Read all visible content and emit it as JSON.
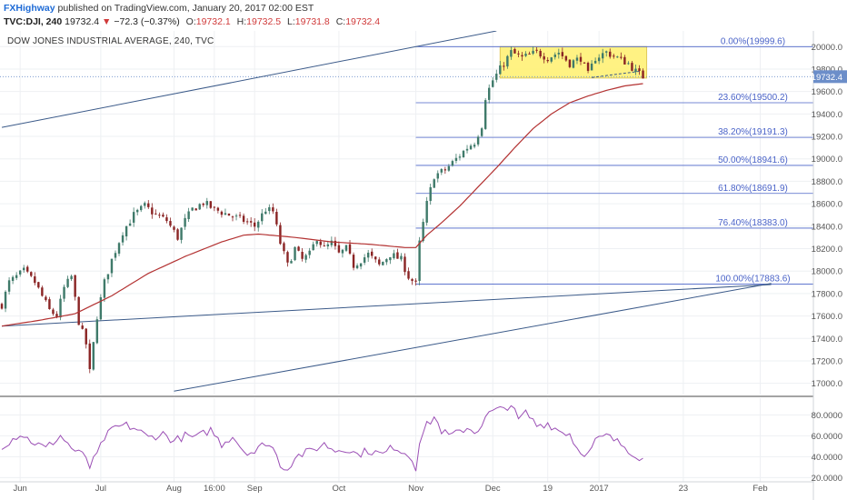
{
  "header": {
    "author": "FXHighway",
    "published_text": "published on TradingView.com, January 20, 2017 02:00 EST",
    "symbol": "TVC:DJI, 240",
    "last": "19732.4",
    "change": "−72.3 (−0.37%)",
    "o_label": "O:",
    "o": "19732.1",
    "h_label": "H:",
    "h": "19732.5",
    "l_label": "L:",
    "l": "19731.8",
    "c_label": "C:",
    "c": "19732.4",
    "colors": {
      "author": "#1e6bd6",
      "down": "#d03a3a"
    }
  },
  "chart_data": [
    {
      "type": "candlestick",
      "title": "DOW JONES INDUSTRIAL AVERAGE, 240, TVC",
      "ylim": [
        16900,
        20140
      ],
      "y_ticks": [
        "20000.0",
        "19800.0",
        "19600.0",
        "19400.0",
        "19200.0",
        "19000.0",
        "18800.0",
        "18600.0",
        "18400.0",
        "18200.0",
        "18000.0",
        "17800.0",
        "17600.0",
        "17400.0",
        "17200.0",
        "17000.0"
      ],
      "y_tick_values": [
        20000,
        19800,
        19600,
        19400,
        19200,
        19000,
        18800,
        18600,
        18400,
        18200,
        18000,
        17800,
        17600,
        17400,
        17200,
        17000
      ],
      "x_labels": [
        "Jun",
        "Jul",
        "Aug",
        "16:00",
        "Sep",
        "Oct",
        "Nov",
        "Dec",
        "19",
        "2017",
        "Feb",
        "23"
      ],
      "x_label_index": [
        5,
        27,
        47,
        58,
        69,
        92,
        113,
        134,
        149,
        163,
        207,
        186
      ],
      "bars_total": 222,
      "last_price_label": "19732.4",
      "last_price": 19732.4,
      "series": [
        {
          "name": "price",
          "anchors": [
            [
              0,
              17700
            ],
            [
              2,
              17900
            ],
            [
              6,
              18000
            ],
            [
              9,
              17900
            ],
            [
              13,
              17650
            ],
            [
              15,
              17600
            ],
            [
              17,
              17850
            ],
            [
              19,
              17950
            ],
            [
              21,
              17550
            ],
            [
              23,
              17350
            ],
            [
              24,
              17100
            ],
            [
              25,
              17350
            ],
            [
              26,
              17600
            ],
            [
              28,
              17900
            ],
            [
              30,
              18100
            ],
            [
              33,
              18350
            ],
            [
              36,
              18500
            ],
            [
              39,
              18580
            ],
            [
              42,
              18500
            ],
            [
              45,
              18450
            ],
            [
              48,
              18300
            ],
            [
              50,
              18450
            ],
            [
              52,
              18550
            ],
            [
              55,
              18610
            ],
            [
              58,
              18550
            ],
            [
              62,
              18500
            ],
            [
              66,
              18450
            ],
            [
              69,
              18400
            ],
            [
              72,
              18550
            ],
            [
              74,
              18530
            ],
            [
              76,
              18250
            ],
            [
              78,
              18050
            ],
            [
              80,
              18200
            ],
            [
              82,
              18100
            ],
            [
              84,
              18150
            ],
            [
              86,
              18300
            ],
            [
              88,
              18200
            ],
            [
              90,
              18250
            ],
            [
              92,
              18150
            ],
            [
              94,
              18200
            ],
            [
              96,
              18050
            ],
            [
              98,
              18100
            ],
            [
              100,
              18150
            ],
            [
              103,
              18050
            ],
            [
              106,
              18150
            ],
            [
              109,
              18100
            ],
            [
              111,
              17950
            ],
            [
              113,
              17880
            ],
            [
              114,
              18250
            ],
            [
              116,
              18600
            ],
            [
              118,
              18850
            ],
            [
              121,
              18900
            ],
            [
              124,
              19000
            ],
            [
              127,
              19100
            ],
            [
              129,
              19150
            ],
            [
              131,
              19300
            ],
            [
              132,
              19550
            ],
            [
              134,
              19700
            ],
            [
              136,
              19800
            ],
            [
              139,
              19950
            ],
            [
              142,
              19900
            ],
            [
              146,
              19950
            ],
            [
              149,
              19900
            ],
            [
              152,
              19950
            ],
            [
              155,
              19850
            ],
            [
              158,
              19900
            ],
            [
              160,
              19750
            ],
            [
              162,
              19900
            ],
            [
              165,
              19950
            ],
            [
              168,
              19900
            ],
            [
              171,
              19850
            ],
            [
              173,
              19780
            ],
            [
              175,
              19732
            ]
          ],
          "colors": {
            "up": "#3f7a6a",
            "down": "#8a2424"
          }
        },
        {
          "name": "moving-average",
          "anchors": [
            [
              0,
              17510
            ],
            [
              10,
              17560
            ],
            [
              20,
              17620
            ],
            [
              30,
              17780
            ],
            [
              40,
              17980
            ],
            [
              50,
              18130
            ],
            [
              60,
              18260
            ],
            [
              66,
              18320
            ],
            [
              70,
              18330
            ],
            [
              80,
              18300
            ],
            [
              90,
              18260
            ],
            [
              100,
              18240
            ],
            [
              110,
              18210
            ],
            [
              113,
              18210
            ],
            [
              116,
              18320
            ],
            [
              120,
              18430
            ],
            [
              125,
              18580
            ],
            [
              130,
              18750
            ],
            [
              135,
              18920
            ],
            [
              140,
              19100
            ],
            [
              145,
              19270
            ],
            [
              150,
              19400
            ],
            [
              155,
              19500
            ],
            [
              160,
              19560
            ],
            [
              165,
              19610
            ],
            [
              170,
              19650
            ],
            [
              175,
              19670
            ]
          ],
          "color": "#b33232"
        }
      ],
      "fib_levels": [
        {
          "label": "0.00%(19999.6)",
          "value": 19999.6
        },
        {
          "label": "23.60%(19500.2)",
          "value": 19500.2
        },
        {
          "label": "38.20%(19191.3)",
          "value": 19191.3
        },
        {
          "label": "50.00%(18941.6)",
          "value": 18941.6
        },
        {
          "label": "61.80%(18691.9)",
          "value": 18691.9
        },
        {
          "label": "76.40%(18383.0)",
          "value": 18383.0
        },
        {
          "label": "100.00%(17883.6)",
          "value": 17883.6
        }
      ],
      "fib_start_index": 113,
      "fib_label_index": 205,
      "trendlines": [
        {
          "from": [
            0,
            19280
          ],
          "to": [
            135,
            20140
          ]
        },
        {
          "from": [
            0,
            17510
          ],
          "to": [
            210,
            17880
          ]
        },
        {
          "from": [
            47,
            16930
          ],
          "to": [
            210,
            17890
          ]
        }
      ],
      "range_box": {
        "from_index": 136,
        "to_index": 176,
        "top": 20000,
        "bottom": 19720
      },
      "range_support": {
        "from": [
          161,
          19725
        ],
        "to": [
          174,
          19780
        ]
      },
      "dotted_price_line": 19732.4,
      "colors": {
        "box": "#fff176",
        "fib": "#4a63c8",
        "trend": "#3b5a89",
        "ma": "#b33232"
      }
    },
    {
      "type": "line",
      "name": "oscillator",
      "ylim": [
        16,
        96
      ],
      "y_ticks": [
        "80.0000",
        "60.0000",
        "40.0000",
        "20.0000"
      ],
      "y_tick_values": [
        80,
        60,
        40,
        20
      ],
      "series": [
        {
          "name": "oscillator",
          "anchors": [
            [
              0,
              50
            ],
            [
              5,
              62
            ],
            [
              8,
              55
            ],
            [
              12,
              48
            ],
            [
              16,
              60
            ],
            [
              20,
              45
            ],
            [
              23,
              40
            ],
            [
              24,
              30
            ],
            [
              26,
              42
            ],
            [
              28,
              58
            ],
            [
              31,
              68
            ],
            [
              34,
              70
            ],
            [
              37,
              66
            ],
            [
              40,
              58
            ],
            [
              44,
              62
            ],
            [
              47,
              55
            ],
            [
              50,
              60
            ],
            [
              53,
              58
            ],
            [
              57,
              66
            ],
            [
              60,
              52
            ],
            [
              63,
              60
            ],
            [
              66,
              46
            ],
            [
              69,
              44
            ],
            [
              72,
              54
            ],
            [
              74,
              48
            ],
            [
              76,
              33
            ],
            [
              78,
              28
            ],
            [
              80,
              40
            ],
            [
              84,
              45
            ],
            [
              88,
              52
            ],
            [
              91,
              46
            ],
            [
              94,
              48
            ],
            [
              97,
              42
            ],
            [
              100,
              46
            ],
            [
              104,
              42
            ],
            [
              107,
              50
            ],
            [
              110,
              44
            ],
            [
              112,
              38
            ],
            [
              113,
              30
            ],
            [
              114,
              55
            ],
            [
              116,
              70
            ],
            [
              118,
              78
            ],
            [
              120,
              65
            ],
            [
              122,
              60
            ],
            [
              124,
              62
            ],
            [
              127,
              68
            ],
            [
              129,
              64
            ],
            [
              131,
              70
            ],
            [
              133,
              82
            ],
            [
              136,
              85
            ],
            [
              139,
              90
            ],
            [
              141,
              75
            ],
            [
              143,
              82
            ],
            [
              146,
              70
            ],
            [
              149,
              72
            ],
            [
              152,
              65
            ],
            [
              155,
              62
            ],
            [
              157,
              48
            ],
            [
              160,
              42
            ],
            [
              162,
              55
            ],
            [
              165,
              60
            ],
            [
              167,
              56
            ],
            [
              170,
              50
            ],
            [
              172,
              44
            ],
            [
              174,
              40
            ],
            [
              175,
              38
            ]
          ],
          "color": "#9b4fb5"
        }
      ]
    }
  ]
}
